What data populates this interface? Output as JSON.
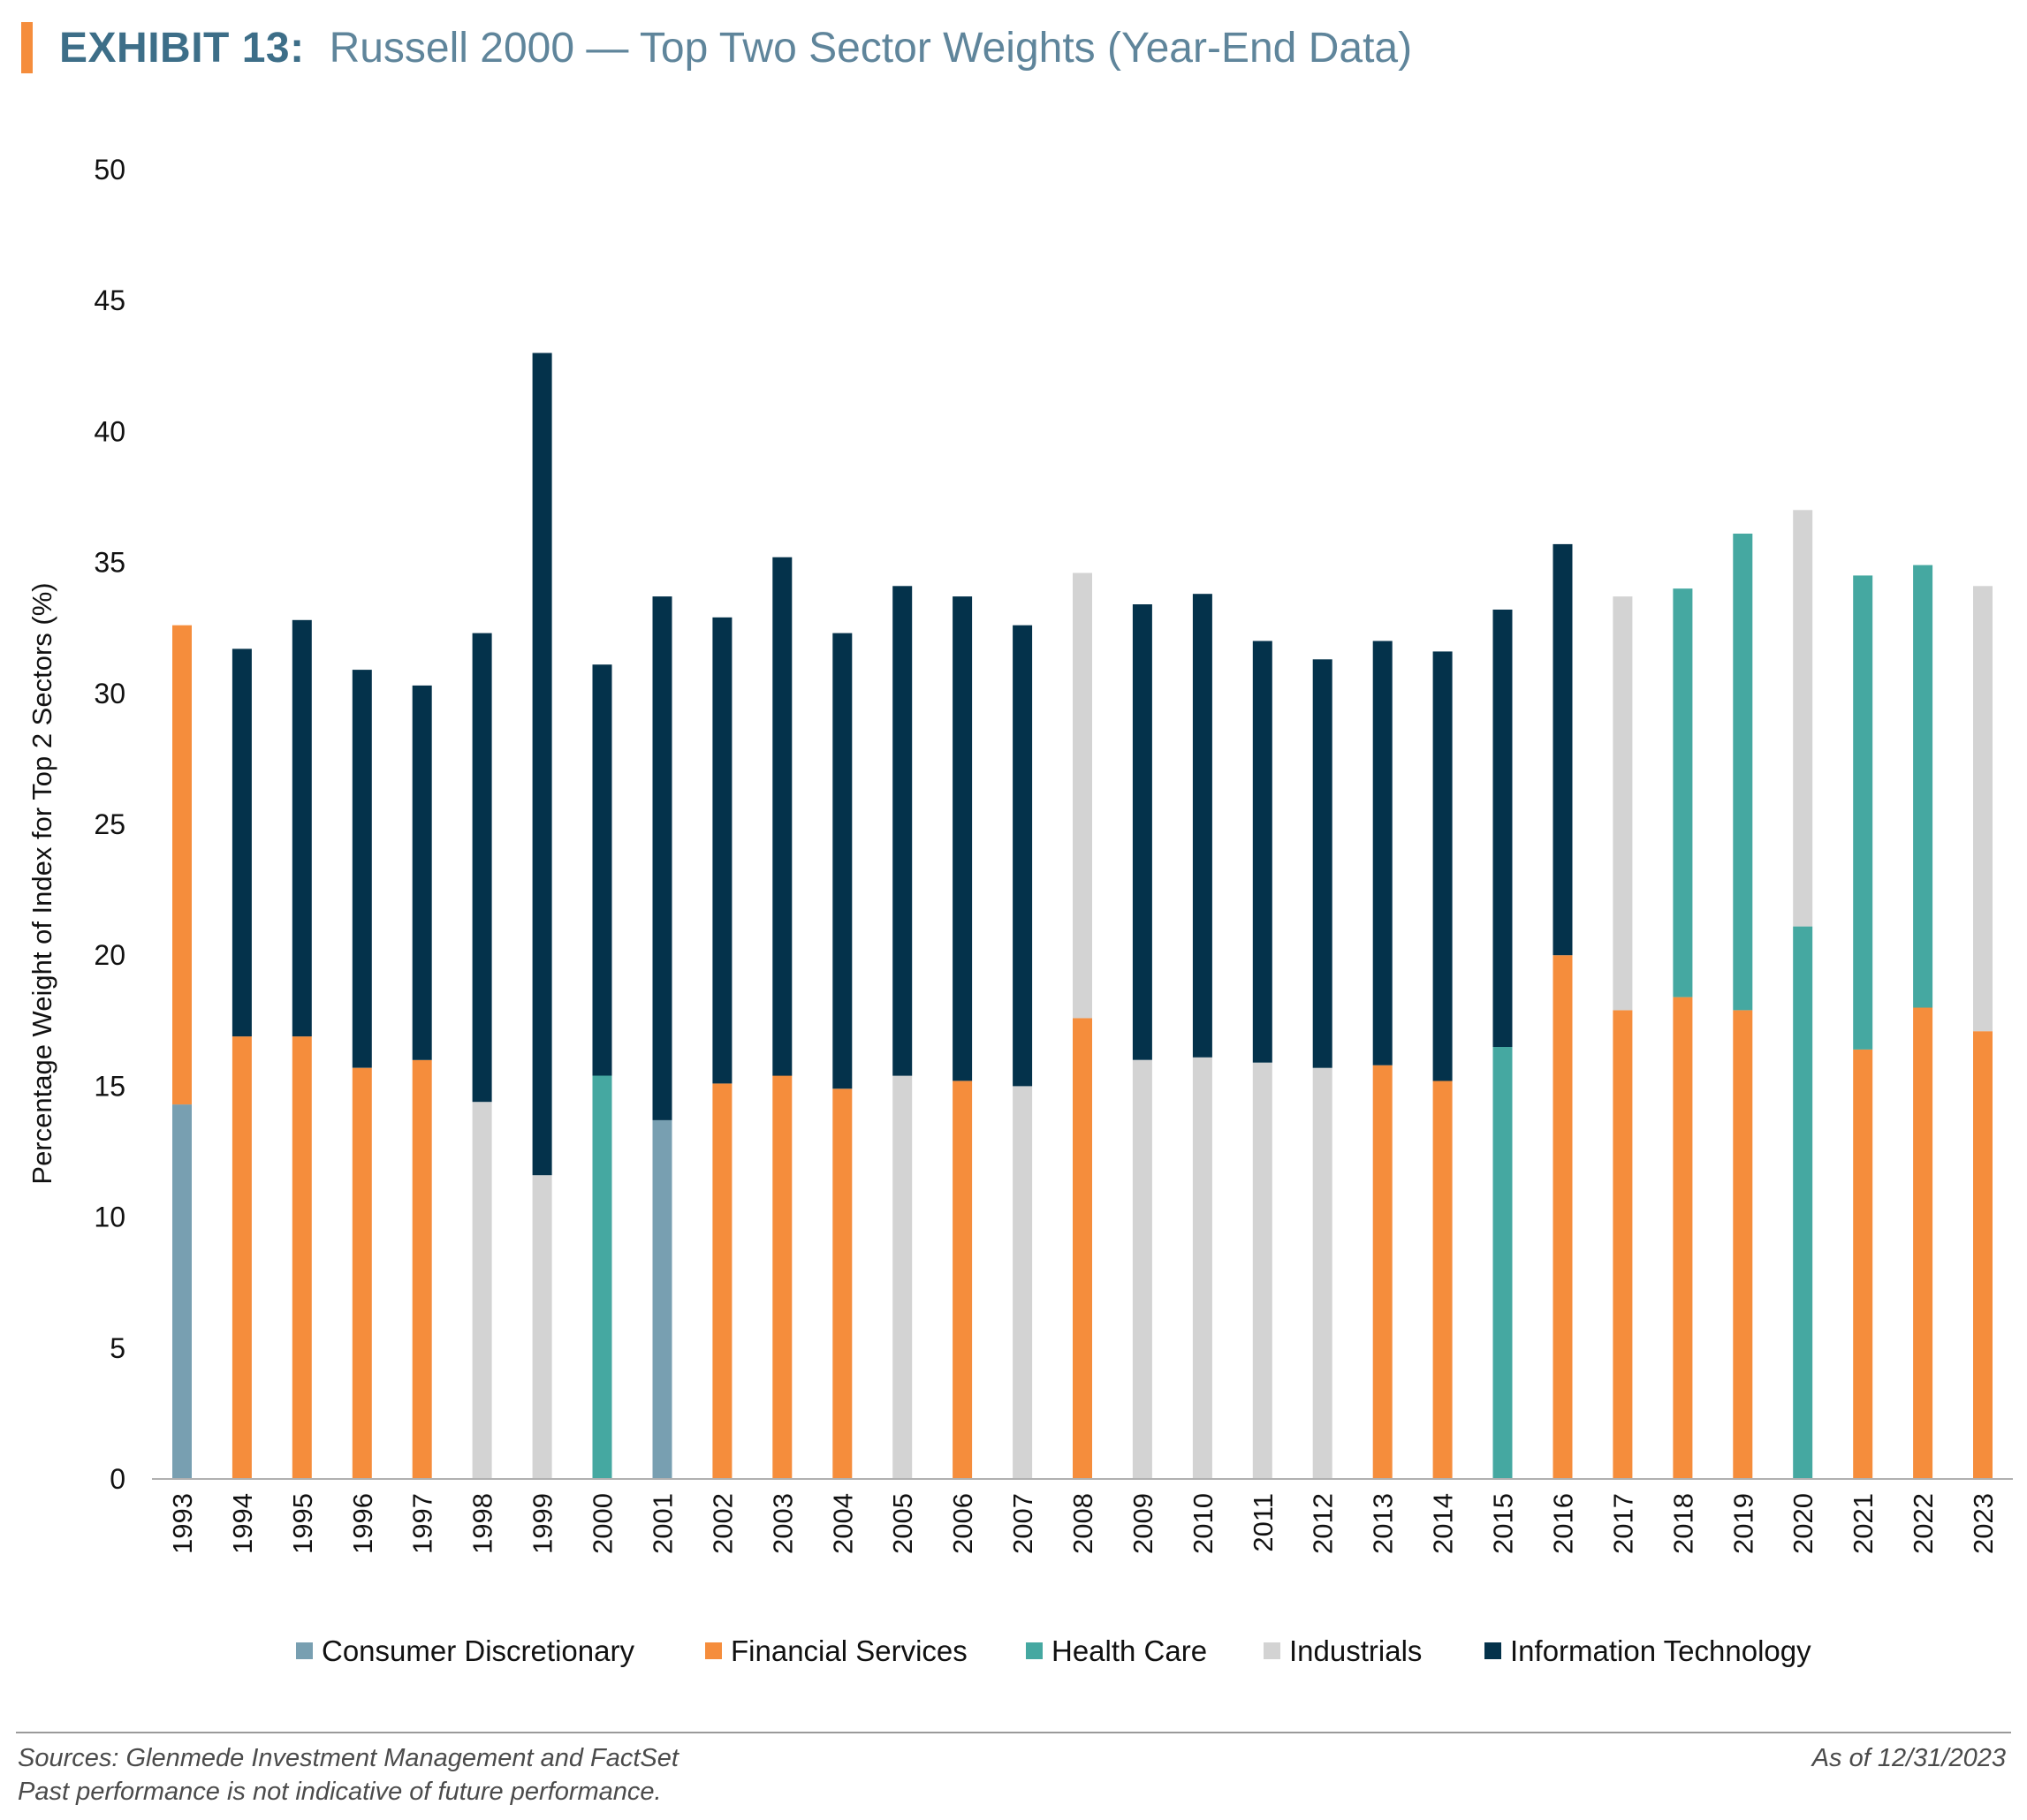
{
  "header": {
    "exhibit_label": "EXHIBIT 13:",
    "title": "Russell 2000 — Top Two Sector Weights (Year-End Data)",
    "accent_color": "#f58d3c"
  },
  "chart_data": {
    "type": "bar",
    "stacked": true,
    "title": "Russell 2000 — Top Two Sector Weights (Year-End Data)",
    "xlabel": "",
    "ylabel": "Percentage Weight of Index for Top 2 Sectors (%)",
    "ylim": [
      0,
      50
    ],
    "yticks": [
      0,
      5,
      10,
      15,
      20,
      25,
      30,
      35,
      40,
      45,
      50
    ],
    "grid": false,
    "legend_position": "bottom",
    "sectors": [
      {
        "name": "Consumer Discretionary",
        "color": "#789fb1"
      },
      {
        "name": "Financial Services",
        "color": "#f58d3c"
      },
      {
        "name": "Health Care",
        "color": "#45a8a1"
      },
      {
        "name": "Industrials",
        "color": "#d3d3d3"
      },
      {
        "name": "Information Technology",
        "color": "#04324b"
      }
    ],
    "categories": [
      "1993",
      "1994",
      "1995",
      "1996",
      "1997",
      "1998",
      "1999",
      "2000",
      "2001",
      "2002",
      "2003",
      "2004",
      "2005",
      "2006",
      "2007",
      "2008",
      "2009",
      "2010",
      "2011",
      "2012",
      "2013",
      "2014",
      "2015",
      "2016",
      "2017",
      "2018",
      "2019",
      "2020",
      "2021",
      "2022",
      "2023"
    ],
    "bars": [
      {
        "year": "1993",
        "segments": [
          {
            "sector": "Consumer Discretionary",
            "value": 14.3
          },
          {
            "sector": "Financial Services",
            "value": 18.3
          }
        ]
      },
      {
        "year": "1994",
        "segments": [
          {
            "sector": "Financial Services",
            "value": 16.9
          },
          {
            "sector": "Information Technology",
            "value": 14.8
          }
        ]
      },
      {
        "year": "1995",
        "segments": [
          {
            "sector": "Financial Services",
            "value": 16.9
          },
          {
            "sector": "Information Technology",
            "value": 15.9
          }
        ]
      },
      {
        "year": "1996",
        "segments": [
          {
            "sector": "Financial Services",
            "value": 15.7
          },
          {
            "sector": "Information Technology",
            "value": 15.2
          }
        ]
      },
      {
        "year": "1997",
        "segments": [
          {
            "sector": "Financial Services",
            "value": 16.0
          },
          {
            "sector": "Information Technology",
            "value": 14.3
          }
        ]
      },
      {
        "year": "1998",
        "segments": [
          {
            "sector": "Industrials",
            "value": 14.4
          },
          {
            "sector": "Information Technology",
            "value": 17.9
          }
        ]
      },
      {
        "year": "1999",
        "segments": [
          {
            "sector": "Industrials",
            "value": 11.6
          },
          {
            "sector": "Information Technology",
            "value": 31.4
          }
        ]
      },
      {
        "year": "2000",
        "segments": [
          {
            "sector": "Health Care",
            "value": 15.4
          },
          {
            "sector": "Information Technology",
            "value": 15.7
          }
        ]
      },
      {
        "year": "2001",
        "segments": [
          {
            "sector": "Consumer Discretionary",
            "value": 13.7
          },
          {
            "sector": "Information Technology",
            "value": 20.0
          }
        ]
      },
      {
        "year": "2002",
        "segments": [
          {
            "sector": "Financial Services",
            "value": 15.1
          },
          {
            "sector": "Information Technology",
            "value": 17.8
          }
        ]
      },
      {
        "year": "2003",
        "segments": [
          {
            "sector": "Financial Services",
            "value": 15.4
          },
          {
            "sector": "Information Technology",
            "value": 19.8
          }
        ]
      },
      {
        "year": "2004",
        "segments": [
          {
            "sector": "Financial Services",
            "value": 14.9
          },
          {
            "sector": "Information Technology",
            "value": 17.4
          }
        ]
      },
      {
        "year": "2005",
        "segments": [
          {
            "sector": "Industrials",
            "value": 15.4
          },
          {
            "sector": "Information Technology",
            "value": 18.7
          }
        ]
      },
      {
        "year": "2006",
        "segments": [
          {
            "sector": "Financial Services",
            "value": 15.2
          },
          {
            "sector": "Information Technology",
            "value": 18.5
          }
        ]
      },
      {
        "year": "2007",
        "segments": [
          {
            "sector": "Industrials",
            "value": 15.0
          },
          {
            "sector": "Information Technology",
            "value": 17.6
          }
        ]
      },
      {
        "year": "2008",
        "segments": [
          {
            "sector": "Financial Services",
            "value": 17.6
          },
          {
            "sector": "Industrials",
            "value": 17.0
          }
        ]
      },
      {
        "year": "2009",
        "segments": [
          {
            "sector": "Industrials",
            "value": 16.0
          },
          {
            "sector": "Information Technology",
            "value": 17.4
          }
        ]
      },
      {
        "year": "2010",
        "segments": [
          {
            "sector": "Industrials",
            "value": 16.1
          },
          {
            "sector": "Information Technology",
            "value": 17.7
          }
        ]
      },
      {
        "year": "2011",
        "segments": [
          {
            "sector": "Industrials",
            "value": 15.9
          },
          {
            "sector": "Information Technology",
            "value": 16.1
          }
        ]
      },
      {
        "year": "2012",
        "segments": [
          {
            "sector": "Industrials",
            "value": 15.7
          },
          {
            "sector": "Information Technology",
            "value": 15.6
          }
        ]
      },
      {
        "year": "2013",
        "segments": [
          {
            "sector": "Financial Services",
            "value": 15.8
          },
          {
            "sector": "Information Technology",
            "value": 16.2
          }
        ]
      },
      {
        "year": "2014",
        "segments": [
          {
            "sector": "Financial Services",
            "value": 15.2
          },
          {
            "sector": "Information Technology",
            "value": 16.4
          }
        ]
      },
      {
        "year": "2015",
        "segments": [
          {
            "sector": "Health Care",
            "value": 16.5
          },
          {
            "sector": "Information Technology",
            "value": 16.7
          }
        ]
      },
      {
        "year": "2016",
        "segments": [
          {
            "sector": "Financial Services",
            "value": 20.0
          },
          {
            "sector": "Information Technology",
            "value": 15.7
          }
        ]
      },
      {
        "year": "2017",
        "segments": [
          {
            "sector": "Financial Services",
            "value": 17.9
          },
          {
            "sector": "Industrials",
            "value": 15.8
          }
        ]
      },
      {
        "year": "2018",
        "segments": [
          {
            "sector": "Financial Services",
            "value": 18.4
          },
          {
            "sector": "Health Care",
            "value": 15.6
          }
        ]
      },
      {
        "year": "2019",
        "segments": [
          {
            "sector": "Financial Services",
            "value": 17.9
          },
          {
            "sector": "Health Care",
            "value": 18.2
          }
        ]
      },
      {
        "year": "2020",
        "segments": [
          {
            "sector": "Health Care",
            "value": 21.1
          },
          {
            "sector": "Industrials",
            "value": 15.9
          }
        ]
      },
      {
        "year": "2021",
        "segments": [
          {
            "sector": "Financial Services",
            "value": 16.4
          },
          {
            "sector": "Health Care",
            "value": 18.1
          }
        ]
      },
      {
        "year": "2022",
        "segments": [
          {
            "sector": "Financial Services",
            "value": 18.0
          },
          {
            "sector": "Health Care",
            "value": 16.9
          }
        ]
      },
      {
        "year": "2023",
        "segments": [
          {
            "sector": "Financial Services",
            "value": 17.1
          },
          {
            "sector": "Industrials",
            "value": 17.0
          }
        ]
      }
    ]
  },
  "footer": {
    "source": "Sources: Glenmede Investment Management and FactSet",
    "note": "Past performance is not indicative of future performance.",
    "as_of": "As of 12/31/2023"
  }
}
